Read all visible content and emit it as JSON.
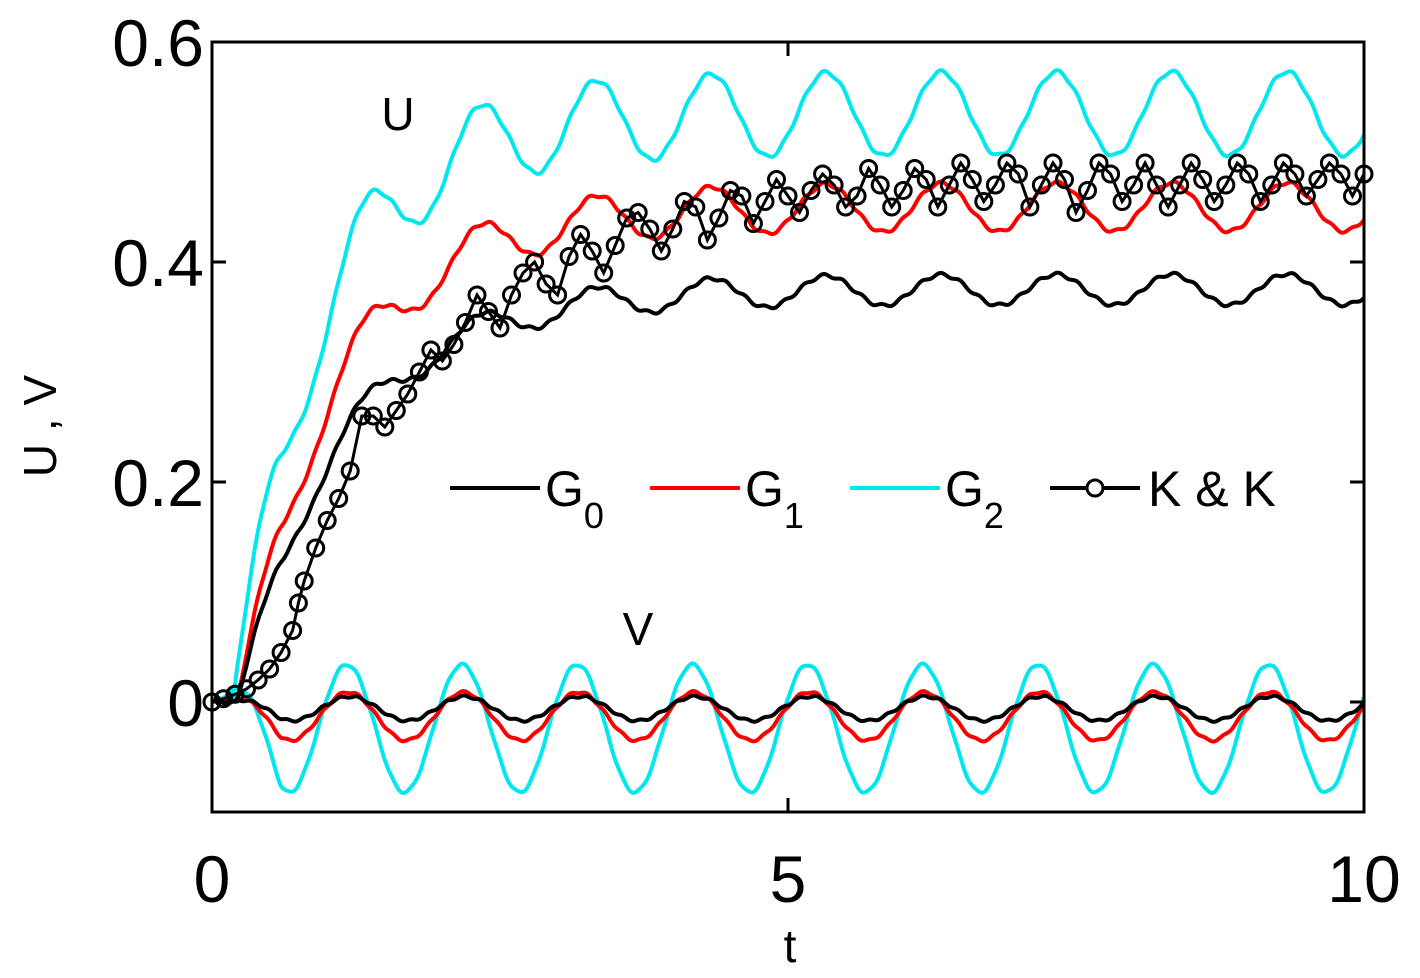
{
  "chart_data": {
    "type": "line",
    "title": "",
    "xlabel": "t",
    "ylabel": "U , V",
    "xlim": [
      0,
      10
    ],
    "ylim": [
      -0.1,
      0.6
    ],
    "xticks": [
      {
        "value": 0,
        "label": "0"
      },
      {
        "value": 5,
        "label": "5"
      },
      {
        "value": 10,
        "label": "10"
      }
    ],
    "yticks": [
      {
        "value": 0,
        "label": "0"
      },
      {
        "value": 0.2,
        "label": "0.2"
      },
      {
        "value": 0.4,
        "label": "0.4"
      },
      {
        "value": 0.6,
        "label": "0.6"
      }
    ],
    "grid": false,
    "legend_position": "center-right",
    "annotations": [
      {
        "text": "U",
        "x": 1.6,
        "y": 0.525
      },
      {
        "text": "V",
        "x": 3.7,
        "y": 0.045
      }
    ],
    "colors": {
      "G0": "#000000",
      "G1": "#ff0000",
      "G2": "#00e8ee",
      "KK": "#000000"
    },
    "series": [
      {
        "name": "G0",
        "legend_main": "G",
        "legend_sub": "0",
        "key": "U_G0",
        "color": "#000000",
        "component": "U",
        "params": {
          "A": 0.375,
          "tau": 0.9,
          "amp": 0.014,
          "per": 1.0,
          "ph": 0.5,
          "delay": 0.22
        }
      },
      {
        "name": "G1",
        "legend_main": "G",
        "legend_sub": "1",
        "key": "U_G1",
        "color": "#ff0000",
        "component": "U",
        "params": {
          "A": 0.45,
          "tau": 0.85,
          "amp": 0.022,
          "per": 1.0,
          "ph": 0.5,
          "delay": 0.22
        }
      },
      {
        "name": "G2",
        "legend_main": "G",
        "legend_sub": "2",
        "key": "U_G2",
        "color": "#00e8ee",
        "component": "U",
        "params": {
          "A": 0.535,
          "tau": 0.75,
          "amp": 0.038,
          "per": 1.0,
          "ph": 0.5,
          "delay": 0.18
        }
      },
      {
        "name": "G0",
        "key": "V_G0",
        "color": "#000000",
        "component": "V",
        "params": {
          "offset": -0.006,
          "amp": 0.011,
          "per": 1.0,
          "ph": 0.35
        }
      },
      {
        "name": "G1",
        "key": "V_G1",
        "color": "#ff0000",
        "component": "V",
        "params": {
          "offset": -0.013,
          "amp": 0.022,
          "per": 1.0,
          "ph": 0.42
        }
      },
      {
        "name": "G2",
        "key": "V_G2",
        "color": "#00e8ee",
        "component": "V",
        "params": {
          "offset": -0.024,
          "amp": 0.058,
          "per": 1.0,
          "ph": 0.5
        }
      }
    ],
    "kk_series": {
      "name": "K & K",
      "legend": "K & K",
      "color": "#000000",
      "x": [
        0.0,
        0.1,
        0.2,
        0.3,
        0.4,
        0.5,
        0.6,
        0.7,
        0.75,
        0.8,
        0.9,
        1.0,
        1.1,
        1.2,
        1.3,
        1.4,
        1.5,
        1.6,
        1.7,
        1.8,
        1.9,
        2.0,
        2.1,
        2.2,
        2.3,
        2.4,
        2.5,
        2.6,
        2.7,
        2.8,
        2.9,
        3.0,
        3.1,
        3.2,
        3.3,
        3.4,
        3.5,
        3.6,
        3.7,
        3.8,
        3.9,
        4.0,
        4.1,
        4.2,
        4.3,
        4.4,
        4.5,
        4.6,
        4.7,
        4.8,
        4.9,
        5.0,
        5.1,
        5.2,
        5.3,
        5.4,
        5.5,
        5.6,
        5.7,
        5.8,
        5.9,
        6.0,
        6.1,
        6.2,
        6.3,
        6.4,
        6.5,
        6.6,
        6.7,
        6.8,
        6.9,
        7.0,
        7.1,
        7.2,
        7.3,
        7.4,
        7.5,
        7.6,
        7.7,
        7.8,
        7.9,
        8.0,
        8.1,
        8.2,
        8.3,
        8.4,
        8.5,
        8.6,
        8.7,
        8.8,
        8.9,
        9.0,
        9.1,
        9.2,
        9.3,
        9.4,
        9.5,
        9.6,
        9.7,
        9.8,
        9.9,
        10.0
      ],
      "y": [
        0.0,
        0.003,
        0.007,
        0.012,
        0.02,
        0.03,
        0.045,
        0.065,
        0.09,
        0.11,
        0.14,
        0.165,
        0.185,
        0.21,
        0.26,
        0.26,
        0.25,
        0.265,
        0.28,
        0.3,
        0.32,
        0.31,
        0.325,
        0.345,
        0.37,
        0.355,
        0.34,
        0.37,
        0.39,
        0.4,
        0.38,
        0.37,
        0.405,
        0.425,
        0.41,
        0.39,
        0.415,
        0.44,
        0.445,
        0.43,
        0.41,
        0.43,
        0.455,
        0.45,
        0.42,
        0.44,
        0.465,
        0.46,
        0.435,
        0.455,
        0.475,
        0.46,
        0.445,
        0.465,
        0.48,
        0.47,
        0.45,
        0.46,
        0.485,
        0.47,
        0.45,
        0.465,
        0.485,
        0.475,
        0.45,
        0.47,
        0.49,
        0.475,
        0.455,
        0.47,
        0.49,
        0.48,
        0.45,
        0.47,
        0.49,
        0.475,
        0.445,
        0.465,
        0.49,
        0.48,
        0.455,
        0.47,
        0.49,
        0.47,
        0.45,
        0.47,
        0.49,
        0.475,
        0.455,
        0.47,
        0.49,
        0.48,
        0.455,
        0.47,
        0.49,
        0.48,
        0.46,
        0.475,
        0.49,
        0.48,
        0.46,
        0.48
      ]
    }
  }
}
